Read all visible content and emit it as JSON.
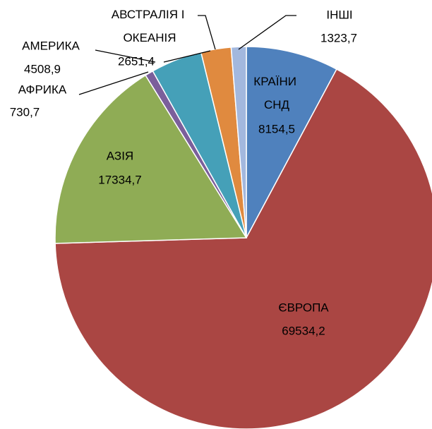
{
  "chart_data": {
    "type": "pie",
    "categories": [
      "КРАЇНИ СНД",
      "ЄВРОПА",
      "АЗІЯ",
      "АФРИКА",
      "АМЕРИКА",
      "АВСТРАЛІЯ І ОКЕАНІЯ",
      "ІНШІ"
    ],
    "values": [
      8154.5,
      69534.2,
      17334.7,
      730.7,
      4508.9,
      2651.4,
      1323.7
    ],
    "value_labels": [
      "8154,5",
      "69534,2",
      "17334,7",
      "730,7",
      "4508,9",
      "2651,4",
      "1323,7"
    ],
    "colors": [
      "#4f81bd",
      "#aa4643",
      "#8fac55",
      "#7b5f9b",
      "#45a0b8",
      "#e08a3f",
      "#a3b8de"
    ]
  }
}
